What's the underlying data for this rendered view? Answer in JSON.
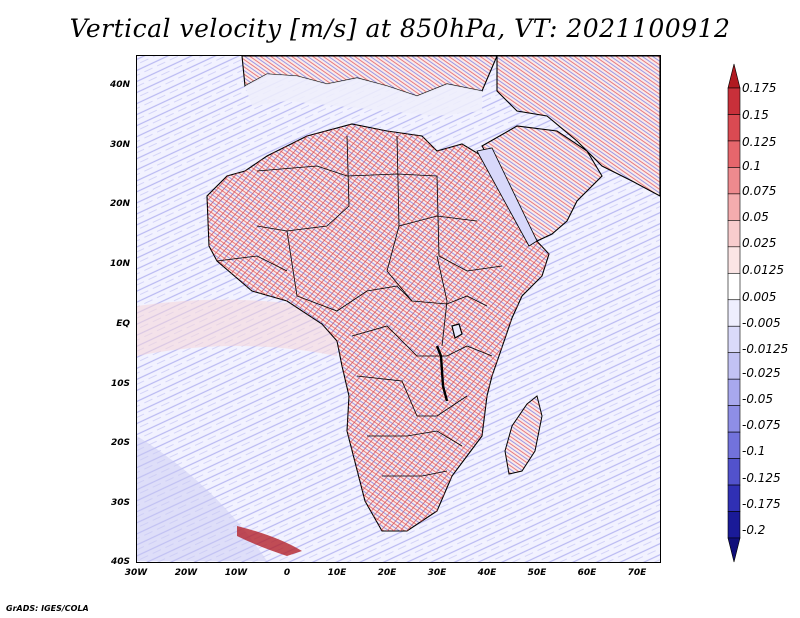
{
  "title": "Vertical velocity [m/s] at 850hPa, VT: 2021100912",
  "credit": "GrADS: IGES/COLA",
  "map": {
    "region": "Africa",
    "lat_labels": [
      "40N",
      "30N",
      "20N",
      "10N",
      "EQ",
      "10S",
      "20S",
      "30S",
      "40S"
    ],
    "lon_labels": [
      "30W",
      "20W",
      "10W",
      "0",
      "10E",
      "20E",
      "30E",
      "40E",
      "50E",
      "60E",
      "70E"
    ],
    "lat_range": [
      -40,
      45
    ],
    "lon_range": [
      -30,
      75
    ]
  },
  "colorbar": {
    "labels": [
      "0.175",
      "0.15",
      "0.125",
      "0.1",
      "0.075",
      "0.05",
      "0.025",
      "0.0125",
      "0.005",
      "-0.005",
      "-0.0125",
      "-0.025",
      "-0.05",
      "-0.075",
      "-0.1",
      "-0.125",
      "-0.175",
      "-0.2"
    ],
    "colors": [
      "#b01a20",
      "#c8303a",
      "#da4a52",
      "#e6666c",
      "#ee8a8e",
      "#f4acae",
      "#f8cccd",
      "#fbe5e5",
      "#ffffff",
      "#eeeefe",
      "#dadafa",
      "#c2c2f4",
      "#a8a8ee",
      "#8e8ee6",
      "#7272dc",
      "#5252cc",
      "#3030b4",
      "#1a1a98",
      "#100e7a"
    ]
  }
}
